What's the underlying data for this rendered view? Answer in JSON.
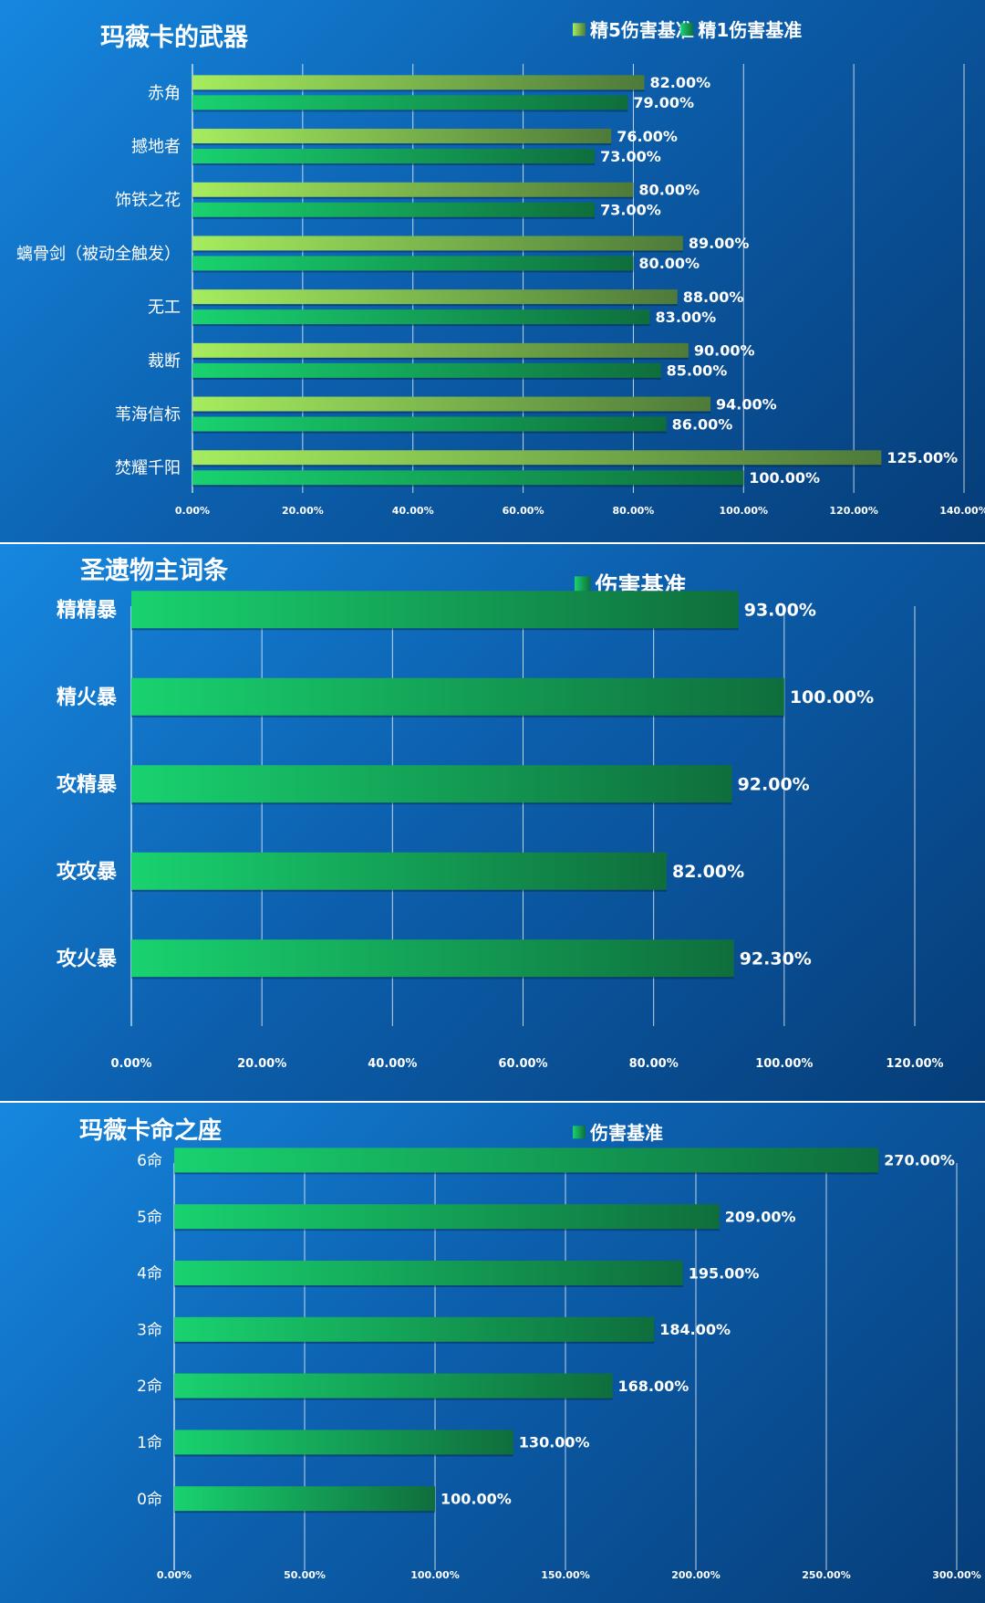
{
  "chart_data": [
    {
      "type": "bar",
      "orientation": "horizontal",
      "title": "玛薇卡的武器",
      "categories": [
        "赤角",
        "撼地者",
        "饰铁之花",
        "螭骨剑（被动全触发）",
        "无工",
        "裁断",
        "苇海信标",
        "焚耀千阳"
      ],
      "series": [
        {
          "name": "精5伤害基准",
          "values": [
            82.0,
            76.0,
            80.0,
            89.0,
            88.0,
            90.0,
            94.0,
            125.0
          ],
          "labels": [
            "82.00%",
            "76.00%",
            "80.00%",
            "89.00%",
            "88.00%",
            "90.00%",
            "94.00%",
            "125.00%"
          ],
          "color": "#9be258"
        },
        {
          "name": "精1伤害基准",
          "values": [
            79.0,
            73.0,
            73.0,
            80.0,
            83.0,
            85.0,
            86.0,
            100.0
          ],
          "labels": [
            "79.00%",
            "73.00%",
            "73.00%",
            "80.00%",
            "83.00%",
            "85.00%",
            "86.00%",
            "100.00%"
          ],
          "color": "#17c86a"
        }
      ],
      "xlim": [
        0,
        140
      ],
      "ticks": [
        "0.00%",
        "20.00%",
        "40.00%",
        "60.00%",
        "80.00%",
        "100.00%",
        "120.00%",
        "140.00%"
      ],
      "grid": true,
      "legend": "top-right"
    },
    {
      "type": "bar",
      "orientation": "horizontal",
      "title": "圣遗物主词条",
      "categories": [
        "精精暴",
        "精火暴",
        "攻精暴",
        "攻攻暴",
        "攻火暴"
      ],
      "series": [
        {
          "name": "伤害基准",
          "values": [
            93.0,
            100.0,
            92.0,
            82.0,
            92.3
          ],
          "labels": [
            "93.00%",
            "100.00%",
            "92.00%",
            "82.00%",
            "92.30%"
          ],
          "color": "#17c86a"
        }
      ],
      "xlim": [
        0,
        120
      ],
      "ticks": [
        "0.00%",
        "20.00%",
        "40.00%",
        "60.00%",
        "80.00%",
        "100.00%",
        "120.00%"
      ],
      "grid": true,
      "legend": "top-right"
    },
    {
      "type": "bar",
      "orientation": "horizontal",
      "title": "玛薇卡命之座",
      "categories": [
        "6命",
        "5命",
        "4命",
        "3命",
        "2命",
        "1命",
        "0命"
      ],
      "series": [
        {
          "name": "伤害基准",
          "values": [
            270.0,
            209.0,
            195.0,
            184.0,
            168.0,
            130.0,
            100.0
          ],
          "labels": [
            "270.00%",
            "209.00%",
            "195.00%",
            "184.00%",
            "168.00%",
            "130.00%",
            "100.00%"
          ],
          "color": "#17c86a"
        }
      ],
      "xlim": [
        0,
        300
      ],
      "ticks": [
        "0.00%",
        "50.00%",
        "100.00%",
        "150.00%",
        "200.00%",
        "250.00%",
        "300.00%"
      ],
      "grid": true,
      "legend": "top-right"
    }
  ]
}
